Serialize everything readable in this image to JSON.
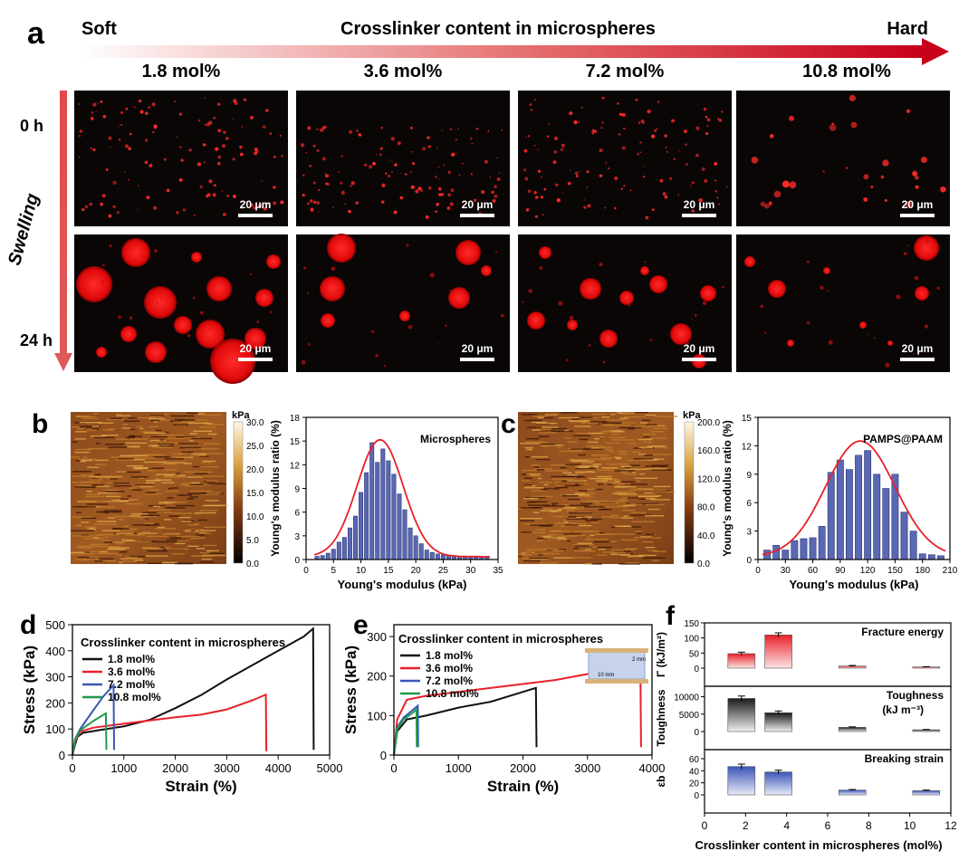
{
  "panel_labels": {
    "a": "a",
    "b": "b",
    "c": "c",
    "d": "d",
    "e": "e",
    "f": "f"
  },
  "header": {
    "soft": "Soft",
    "title": "Crosslinker content  in microspheres",
    "hard": "Hard",
    "contents": [
      "1.8 mol%",
      "3.6 mol%",
      "7.2 mol%",
      "10.8 mol%"
    ]
  },
  "rows": {
    "t0": "0 h",
    "t24": "24 h",
    "swelling": "Swelling"
  },
  "scale_bar": "20 μm",
  "colors": {
    "red_arrow": "#d0021b",
    "bars": "#5a68b4",
    "fit": "#e8202a",
    "black_curve": "#111111",
    "red_curve": "#e8202a",
    "blue_curve": "#3b55b8",
    "green_curve": "#1d9a4a"
  },
  "afm_b": {
    "unit": "kPa",
    "ticks": [
      "30.0",
      "25.0",
      "20.0",
      "15.0",
      "10.0",
      "5.0",
      "0.0"
    ]
  },
  "afm_c": {
    "unit": "kPa",
    "ticks": [
      "200.0",
      "160.0",
      "120.0",
      "80.0",
      "40.0",
      "0.0"
    ]
  },
  "chart_data": [
    {
      "id": "hist_b",
      "type": "bar",
      "legend": "Microspheres",
      "xlabel": "Young's modulus (kPa)",
      "ylabel": "Young's modulus ratio (%)",
      "xlim": [
        0,
        35
      ],
      "ylim": [
        0,
        18
      ],
      "xticks": [
        0,
        5,
        10,
        15,
        20,
        25,
        30,
        35
      ],
      "yticks": [
        0,
        3,
        6,
        9,
        12,
        15,
        18
      ],
      "x": [
        2,
        3,
        4,
        5,
        6,
        7,
        8,
        9,
        10,
        11,
        12,
        13,
        14,
        15,
        16,
        17,
        18,
        19,
        20,
        21,
        22,
        23,
        24,
        25,
        26,
        27,
        28,
        29,
        30,
        31,
        32,
        33
      ],
      "values": [
        0.4,
        0.5,
        0.8,
        1.3,
        2.2,
        2.8,
        4.0,
        5.5,
        8.5,
        11.0,
        14.8,
        12.3,
        14.0,
        12.5,
        10.8,
        8.3,
        6.3,
        4.0,
        3.0,
        2.0,
        1.2,
        0.9,
        0.7,
        0.6,
        0.5,
        0.5,
        0.4,
        0.4,
        0.4,
        0.4,
        0.4,
        0.4
      ],
      "fit_peak": [
        13.5,
        14.8
      ],
      "fit_sigma": 4.2
    },
    {
      "id": "hist_c",
      "type": "bar",
      "legend": "PAMPS@PAAM",
      "xlabel": "Young's modulus (kPa)",
      "ylabel": "Young's modulus ratio (%)",
      "xlim": [
        0,
        210
      ],
      "ylim": [
        0,
        15
      ],
      "xticks": [
        0,
        30,
        60,
        90,
        120,
        150,
        180,
        210
      ],
      "yticks": [
        0,
        3,
        6,
        9,
        12,
        15
      ],
      "x": [
        10,
        20,
        30,
        40,
        50,
        60,
        70,
        80,
        90,
        100,
        110,
        120,
        130,
        140,
        150,
        160,
        170,
        180,
        190,
        200
      ],
      "values": [
        1.0,
        1.5,
        1.0,
        2.0,
        2.2,
        2.3,
        3.5,
        9.2,
        10.5,
        9.5,
        11.0,
        11.5,
        9.0,
        7.5,
        9.0,
        5.0,
        3.0,
        0.6,
        0.5,
        0.4
      ],
      "fit_peak": [
        112,
        12.2
      ],
      "fit_sigma": 38
    },
    {
      "id": "stress_d",
      "type": "line",
      "legend_title": "Crosslinker content in microspheres",
      "xlabel": "Strain (%)",
      "ylabel": "Stress (kPa)",
      "xlim": [
        0,
        5000
      ],
      "ylim": [
        0,
        500
      ],
      "xticks": [
        0,
        1000,
        2000,
        3000,
        4000,
        5000
      ],
      "yticks": [
        0,
        100,
        200,
        300,
        400,
        500
      ],
      "series": [
        {
          "name": "1.8 mol%",
          "points": [
            [
              0,
              0
            ],
            [
              50,
              40
            ],
            [
              100,
              70
            ],
            [
              200,
              85
            ],
            [
              500,
              95
            ],
            [
              1000,
              110
            ],
            [
              1500,
              135
            ],
            [
              2000,
              180
            ],
            [
              2500,
              230
            ],
            [
              3000,
              290
            ],
            [
              3500,
              345
            ],
            [
              4000,
              400
            ],
            [
              4500,
              455
            ],
            [
              4680,
              485
            ],
            [
              4690,
              20
            ]
          ]
        },
        {
          "name": "3.6 mol%",
          "points": [
            [
              0,
              0
            ],
            [
              50,
              50
            ],
            [
              150,
              90
            ],
            [
              400,
              105
            ],
            [
              1000,
              120
            ],
            [
              2000,
              145
            ],
            [
              2500,
              155
            ],
            [
              3000,
              175
            ],
            [
              3500,
              210
            ],
            [
              3760,
              232
            ],
            [
              3770,
              15
            ]
          ]
        },
        {
          "name": "7.2 mol%",
          "points": [
            [
              0,
              0
            ],
            [
              50,
              60
            ],
            [
              150,
              100
            ],
            [
              400,
              170
            ],
            [
              600,
              225
            ],
            [
              800,
              268
            ],
            [
              810,
              20
            ]
          ]
        },
        {
          "name": "10.8 mol%",
          "points": [
            [
              0,
              0
            ],
            [
              50,
              55
            ],
            [
              150,
              95
            ],
            [
              400,
              130
            ],
            [
              650,
              160
            ],
            [
              660,
              20
            ]
          ]
        }
      ]
    },
    {
      "id": "stress_e",
      "type": "line",
      "legend_title": "Crosslinker content in microspheres",
      "xlabel": "Strain (%)",
      "ylabel": "Stress (kPa)",
      "xlim": [
        0,
        4000
      ],
      "ylim": [
        0,
        330
      ],
      "xticks": [
        0,
        1000,
        2000,
        3000,
        4000
      ],
      "yticks": [
        0,
        100,
        200,
        300
      ],
      "inset": {
        "h": "2 mm",
        "w": "10 mm"
      },
      "series": [
        {
          "name": "1.8 mol%",
          "points": [
            [
              0,
              0
            ],
            [
              50,
              60
            ],
            [
              200,
              90
            ],
            [
              500,
              100
            ],
            [
              1000,
              120
            ],
            [
              1500,
              135
            ],
            [
              2000,
              160
            ],
            [
              2200,
              170
            ],
            [
              2210,
              20
            ]
          ]
        },
        {
          "name": "3.6 mol%",
          "points": [
            [
              0,
              0
            ],
            [
              50,
              90
            ],
            [
              200,
              140
            ],
            [
              500,
              150
            ],
            [
              1000,
              160
            ],
            [
              2000,
              180
            ],
            [
              2500,
              190
            ],
            [
              3000,
              205
            ],
            [
              3500,
              212
            ],
            [
              3820,
              220
            ],
            [
              3830,
              20
            ]
          ]
        },
        {
          "name": "7.2 mol%",
          "points": [
            [
              0,
              0
            ],
            [
              50,
              70
            ],
            [
              150,
              95
            ],
            [
              300,
              115
            ],
            [
              370,
              125
            ],
            [
              375,
              20
            ]
          ]
        },
        {
          "name": "10.8 mol%",
          "points": [
            [
              0,
              0
            ],
            [
              50,
              65
            ],
            [
              150,
              90
            ],
            [
              300,
              108
            ],
            [
              350,
              115
            ],
            [
              355,
              20
            ]
          ]
        }
      ]
    },
    {
      "id": "bars_f",
      "type": "bar",
      "xlabel": "Crosslinker content in microspheres (mol%)",
      "xlim": [
        0,
        12
      ],
      "xticks": [
        0,
        2,
        4,
        6,
        8,
        10,
        12
      ],
      "x": [
        1.8,
        3.6,
        7.2,
        10.8
      ],
      "panels": [
        {
          "name": "Fracture energy",
          "ylabel": "Γ (kJ/m²)",
          "ylim": [
            0,
            150
          ],
          "yticks": [
            0,
            50,
            100,
            150
          ],
          "values": [
            48,
            110,
            7,
            4
          ],
          "errors": [
            5,
            7,
            2,
            1
          ],
          "color": "#e8202a"
        },
        {
          "name": "Toughness",
          "name2": "(kJ m⁻³)",
          "ylabel": "Toughness",
          "ylim": [
            0,
            13000
          ],
          "yticks": [
            0,
            5000,
            10000
          ],
          "values": [
            9500,
            5400,
            1200,
            500
          ],
          "errors": [
            700,
            500,
            150,
            100
          ],
          "color": "#222222"
        },
        {
          "name": "Breaking strain",
          "ylabel": "εb",
          "ylim": [
            0,
            75
          ],
          "yticks": [
            0,
            20,
            40,
            60
          ],
          "values": [
            47,
            38,
            8,
            7
          ],
          "errors": [
            4,
            3,
            1,
            1
          ],
          "color": "#3b55b8"
        }
      ]
    }
  ]
}
